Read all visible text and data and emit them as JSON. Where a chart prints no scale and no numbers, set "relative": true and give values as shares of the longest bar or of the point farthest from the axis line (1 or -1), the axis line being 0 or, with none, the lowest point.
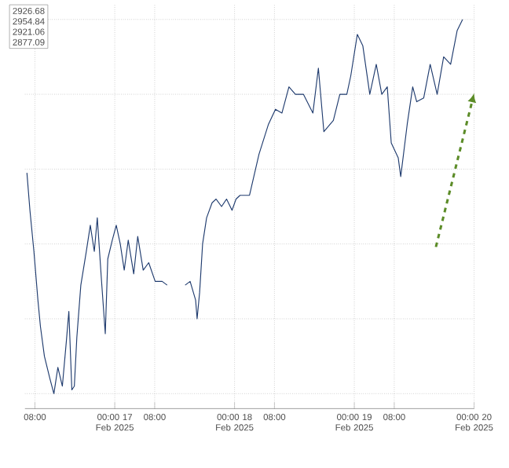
{
  "chart_data": {
    "type": "line",
    "relative": true,
    "grid": true,
    "line_style": "solid",
    "color": "#1f3b6e",
    "xlim": [
      "2025-02-16T06:00",
      "2025-02-20T00:00"
    ],
    "xticks": [
      {
        "value": "2025-02-16T08:00",
        "label": "08:00"
      },
      {
        "value": "2025-02-17T00:00",
        "label": "00:00 17 Feb 2025"
      },
      {
        "value": "2025-02-17T08:00",
        "label": "08:00"
      },
      {
        "value": "2025-02-18T00:00",
        "label": "00:00 18 Feb 2025"
      },
      {
        "value": "2025-02-18T08:00",
        "label": "08:00"
      },
      {
        "value": "2025-02-19T00:00",
        "label": "00:00 19 Feb 2025"
      },
      {
        "value": "2025-02-19T08:00",
        "label": "08:00"
      },
      {
        "value": "2025-02-20T00:00",
        "label": "00:00 20 Feb 2025"
      }
    ],
    "annotations": [
      "2926.68",
      "2954.84",
      "2921.06",
      "2877.09"
    ],
    "x": [
      "2025-02-16T06:24",
      "2025-02-16T07:00",
      "2025-02-16T07:48",
      "2025-02-16T08:36",
      "2025-02-16T09:06",
      "2025-02-16T09:54",
      "2025-02-16T11:00",
      "2025-02-16T11:48",
      "2025-02-16T12:36",
      "2025-02-16T13:30",
      "2025-02-16T14:18",
      "2025-02-16T14:48",
      "2025-02-16T15:24",
      "2025-02-16T15:54",
      "2025-02-16T16:24",
      "2025-02-16T17:12",
      "2025-02-16T18:18",
      "2025-02-16T19:06",
      "2025-02-16T19:54",
      "2025-02-16T20:30",
      "2025-02-16T21:18",
      "2025-02-16T22:06",
      "2025-02-16T22:36",
      "2025-02-16T23:30",
      "2025-02-17T00:18",
      "2025-02-17T01:06",
      "2025-02-17T01:54",
      "2025-02-17T02:42",
      "2025-02-17T03:48",
      "2025-02-17T04:36",
      "2025-02-17T05:42",
      "2025-02-17T06:48",
      "2025-02-17T08:06",
      "2025-02-17T09:30",
      "2025-02-17T10:30",
      "2025-02-17T12:18",
      "2025-02-17T14:06",
      "2025-02-17T15:06",
      "2025-02-17T16:12",
      "2025-02-17T16:30",
      "2025-02-17T17:00",
      "2025-02-17T17:36",
      "2025-02-17T18:24",
      "2025-02-17T19:30",
      "2025-02-17T20:18",
      "2025-02-17T21:24",
      "2025-02-17T22:24",
      "2025-02-17T23:30",
      "2025-02-18T00:18",
      "2025-02-18T01:06",
      "2025-02-18T03:00",
      "2025-02-18T04:54",
      "2025-02-18T06:48",
      "2025-02-18T08:12",
      "2025-02-18T09:30",
      "2025-02-18T10:54",
      "2025-02-18T12:12",
      "2025-02-18T13:48",
      "2025-02-18T15:42",
      "2025-02-18T16:48",
      "2025-02-18T17:54",
      "2025-02-18T19:48",
      "2025-02-18T21:06",
      "2025-02-18T22:30",
      "2025-02-18T23:18",
      "2025-02-19T00:36",
      "2025-02-19T01:42",
      "2025-02-19T03:06",
      "2025-02-19T04:24",
      "2025-02-19T05:30",
      "2025-02-19T06:36",
      "2025-02-19T07:24",
      "2025-02-19T08:48",
      "2025-02-19T09:18",
      "2025-02-19T10:36",
      "2025-02-19T11:42",
      "2025-02-19T12:30",
      "2025-02-19T13:54",
      "2025-02-19T15:12",
      "2025-02-19T16:36",
      "2025-02-19T17:54",
      "2025-02-19T19:18",
      "2025-02-19T20:36",
      "2025-02-19T21:42"
    ],
    "values": [
      0.59,
      0.49,
      0.38,
      0.25,
      0.18,
      0.1,
      0.04,
      0,
      0.07,
      0.02,
      0.14,
      0.22,
      0.01,
      0.02,
      0.15,
      0.29,
      0.38,
      0.45,
      0.38,
      0.47,
      0.31,
      0.16,
      0.36,
      0.41,
      0.45,
      0.4,
      0.33,
      0.41,
      0.32,
      0.42,
      0.33,
      0.35,
      0.3,
      0.3,
      0.29,
      null,
      0.29,
      0.3,
      0.25,
      0.2,
      0.27,
      0.4,
      0.47,
      0.51,
      0.52,
      0.5,
      0.52,
      0.49,
      0.52,
      0.53,
      0.53,
      0.64,
      0.72,
      0.76,
      0.75,
      0.82,
      0.8,
      0.8,
      0.75,
      0.87,
      0.7,
      0.73,
      0.8,
      0.8,
      0.85,
      0.96,
      0.93,
      0.8,
      0.88,
      0.8,
      0.82,
      0.67,
      0.63,
      0.58,
      0.72,
      0.82,
      0.78,
      0.79,
      0.88,
      0.8,
      0.9,
      0.88,
      0.97,
      1.0
    ]
  }
}
